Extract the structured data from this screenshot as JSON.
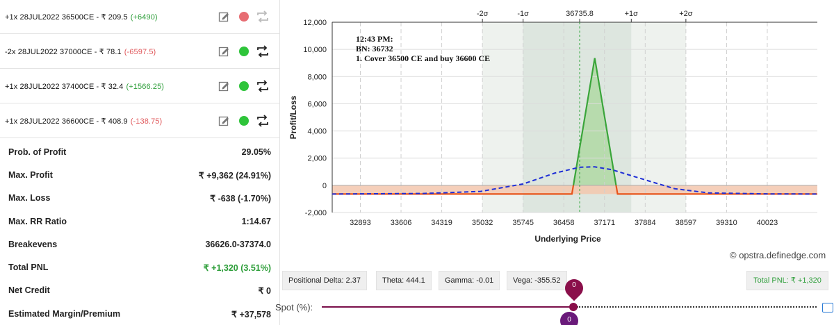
{
  "positions": [
    {
      "text": "+1x  28JUL2022  36500CE - ₹ 209.5",
      "pnl": "(+6490)",
      "pnl_color": "green",
      "active": false,
      "edit_icon": "pencil-icon",
      "swap_icon": "swap-icon"
    },
    {
      "text": "-2x  28JUL2022  37000CE - ₹ 78.1",
      "pnl": "(-6597.5)",
      "pnl_color": "red",
      "active": true,
      "edit_icon": "pencil-icon",
      "swap_icon": "swap-icon"
    },
    {
      "text": "+1x  28JUL2022  37400CE - ₹ 32.4",
      "pnl": "(+1566.25)",
      "pnl_color": "green",
      "active": true,
      "edit_icon": "pencil-icon",
      "swap_icon": "swap-icon"
    },
    {
      "text": "+1x  28JUL2022  36600CE - ₹ 408.9",
      "pnl": "(-138.75)",
      "pnl_color": "red",
      "active": true,
      "edit_icon": "pencil-icon",
      "swap_icon": "swap-icon"
    }
  ],
  "stats": [
    {
      "label": "Prob. of Profit",
      "value": "29.05%"
    },
    {
      "label": "Max. Profit",
      "value": "₹ +9,362 (24.91%)"
    },
    {
      "label": "Max. Loss",
      "value": "₹ -638 (-1.70%)"
    },
    {
      "label": "Max. RR Ratio",
      "value": "1:14.67"
    },
    {
      "label": "Breakevens",
      "value": "36626.0-37374.0"
    },
    {
      "label": "Total PNL",
      "value": "₹ +1,320 (3.51%)",
      "color": "green"
    },
    {
      "label": "Net Credit",
      "value": "₹ 0"
    },
    {
      "label": "Estimated Margin/Premium",
      "value": "₹ +37,578"
    }
  ],
  "chart": {
    "annotation": [
      "12:43 PM:",
      "BN: 36732",
      "1. Cover 36500 CE and buy 36600 CE"
    ],
    "watermark": "© opstra.definedge.com",
    "sigma_labels": [
      "-2σ",
      "-1σ",
      "36735.8",
      "+1σ",
      "+2σ"
    ]
  },
  "chart_data": {
    "type": "line",
    "xlabel": "Underlying Price",
    "ylabel": "Profit/Loss",
    "x_ticks": [
      "32893",
      "33606",
      "34319",
      "35032",
      "35745",
      "36458",
      "37171",
      "37884",
      "38597",
      "39310",
      "40023"
    ],
    "y_ticks": [
      "12,000",
      "10,000",
      "8,000",
      "6,000",
      "4,000",
      "2,000",
      "0",
      "-2,000"
    ],
    "xlim": [
      32400,
      40900
    ],
    "ylim": [
      -2000,
      12000
    ],
    "spot": 36735.8,
    "sigma_bands": {
      "minus2": 35032,
      "minus1": 35745,
      "plus1": 37640,
      "plus2": 38597
    },
    "series": [
      {
        "style": "solid",
        "color": "#e8541a",
        "points": [
          [
            32400,
            -638
          ],
          [
            36600,
            -638
          ],
          [
            36626,
            0
          ]
        ]
      },
      {
        "style": "solid",
        "color": "#3aa53a",
        "points": [
          [
            36626,
            0
          ],
          [
            37000,
            9362
          ],
          [
            37374,
            0
          ]
        ]
      },
      {
        "style": "solid",
        "color": "#e8541a",
        "points": [
          [
            37374,
            0
          ],
          [
            37400,
            -638
          ],
          [
            40900,
            -638
          ]
        ]
      },
      {
        "style": "dashed",
        "color": "#1f2fd6",
        "points": [
          [
            32400,
            -640
          ],
          [
            34000,
            -600
          ],
          [
            35000,
            -450
          ],
          [
            35745,
            100
          ],
          [
            36300,
            900
          ],
          [
            36735.8,
            1330
          ],
          [
            37000,
            1360
          ],
          [
            37300,
            1150
          ],
          [
            37884,
            400
          ],
          [
            38400,
            -250
          ],
          [
            39000,
            -560
          ],
          [
            40000,
            -630
          ],
          [
            40900,
            -640
          ]
        ]
      }
    ]
  },
  "greeks": {
    "delta": "Positional Delta: 2.37",
    "theta": "Theta: 444.1",
    "gamma": "Gamma: -0.01",
    "vega": "Vega: -355.52",
    "total_pnl": "Total PNL: ₹ +1,320"
  },
  "spot": {
    "label": "Spot (%):",
    "value": "0",
    "value_bottom": "0",
    "settings_icon": "settings-icon"
  },
  "colors": {
    "green": "#2e9e3a",
    "red": "#e0585b",
    "dot_active": "#2ec43a",
    "dot_inactive": "#e76d73"
  }
}
